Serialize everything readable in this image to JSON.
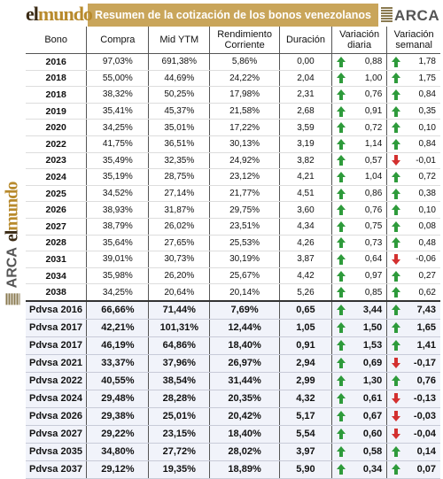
{
  "header": {
    "logo_el": "el",
    "logo_mundo": "mundo",
    "title": "Resumen de la cotización de los bonos venezolanos",
    "arca": "ARCA",
    "arca_sub": "análisis económico"
  },
  "columns": [
    "Bono",
    "Compra",
    "Mid YTM",
    "Rendimiento Corriente",
    "Duración",
    "Variación diaria",
    "Variación semanal"
  ],
  "colors": {
    "band": "#c9a55a",
    "up": "#2e9b3b",
    "down": "#d3302f",
    "pdvsa_bg": "#f1f3fa"
  },
  "rows": [
    {
      "bono": "2016",
      "compra": "97,03%",
      "ytm": "691,38%",
      "rc": "5,86%",
      "dur": "0,00",
      "vd_dir": "up",
      "vd": "0,88",
      "vs_dir": "up",
      "vs": "1,78"
    },
    {
      "bono": "2018",
      "compra": "55,00%",
      "ytm": "44,69%",
      "rc": "24,22%",
      "dur": "2,04",
      "vd_dir": "up",
      "vd": "1,00",
      "vs_dir": "up",
      "vs": "1,75"
    },
    {
      "bono": "2018",
      "compra": "38,32%",
      "ytm": "50,25%",
      "rc": "17,98%",
      "dur": "2,31",
      "vd_dir": "up",
      "vd": "0,76",
      "vs_dir": "up",
      "vs": "0,84"
    },
    {
      "bono": "2019",
      "compra": "35,41%",
      "ytm": "45,37%",
      "rc": "21,58%",
      "dur": "2,68",
      "vd_dir": "up",
      "vd": "0,91",
      "vs_dir": "up",
      "vs": "0,35"
    },
    {
      "bono": "2020",
      "compra": "34,25%",
      "ytm": "35,01%",
      "rc": "17,22%",
      "dur": "3,59",
      "vd_dir": "up",
      "vd": "0,72",
      "vs_dir": "up",
      "vs": "0,10"
    },
    {
      "bono": "2022",
      "compra": "41,75%",
      "ytm": "36,51%",
      "rc": "30,13%",
      "dur": "3,19",
      "vd_dir": "up",
      "vd": "1,14",
      "vs_dir": "up",
      "vs": "0,84"
    },
    {
      "bono": "2023",
      "compra": "35,49%",
      "ytm": "32,35%",
      "rc": "24,92%",
      "dur": "3,82",
      "vd_dir": "up",
      "vd": "0,57",
      "vs_dir": "down",
      "vs": "-0,01"
    },
    {
      "bono": "2024",
      "compra": "35,19%",
      "ytm": "28,75%",
      "rc": "23,12%",
      "dur": "4,21",
      "vd_dir": "up",
      "vd": "1,04",
      "vs_dir": "up",
      "vs": "0,72"
    },
    {
      "bono": "2025",
      "compra": "34,52%",
      "ytm": "27,14%",
      "rc": "21,77%",
      "dur": "4,51",
      "vd_dir": "up",
      "vd": "0,86",
      "vs_dir": "up",
      "vs": "0,38"
    },
    {
      "bono": "2026",
      "compra": "38,93%",
      "ytm": "31,87%",
      "rc": "29,75%",
      "dur": "3,60",
      "vd_dir": "up",
      "vd": "0,76",
      "vs_dir": "up",
      "vs": "0,10"
    },
    {
      "bono": "2027",
      "compra": "38,79%",
      "ytm": "26,02%",
      "rc": "23,51%",
      "dur": "4,34",
      "vd_dir": "up",
      "vd": "0,75",
      "vs_dir": "up",
      "vs": "0,08"
    },
    {
      "bono": "2028",
      "compra": "35,64%",
      "ytm": "27,65%",
      "rc": "25,53%",
      "dur": "4,26",
      "vd_dir": "up",
      "vd": "0,73",
      "vs_dir": "up",
      "vs": "0,48"
    },
    {
      "bono": "2031",
      "compra": "39,01%",
      "ytm": "30,73%",
      "rc": "30,19%",
      "dur": "3,87",
      "vd_dir": "up",
      "vd": "0,64",
      "vs_dir": "down",
      "vs": "-0,06"
    },
    {
      "bono": "2034",
      "compra": "35,98%",
      "ytm": "26,20%",
      "rc": "25,67%",
      "dur": "4,42",
      "vd_dir": "up",
      "vd": "0,97",
      "vs_dir": "up",
      "vs": "0,27"
    },
    {
      "bono": "2038",
      "compra": "34,25%",
      "ytm": "20,64%",
      "rc": "20,14%",
      "dur": "5,26",
      "vd_dir": "up",
      "vd": "0,85",
      "vs_dir": "up",
      "vs": "0,62"
    }
  ],
  "pdvsa_rows": [
    {
      "bono": "Pdvsa 2016",
      "compra": "66,66%",
      "ytm": "71,44%",
      "rc": "7,69%",
      "dur": "0,65",
      "vd_dir": "up",
      "vd": "3,44",
      "vs_dir": "up",
      "vs": "7,43"
    },
    {
      "bono": "Pdvsa 2017",
      "compra": "42,21%",
      "ytm": "101,31%",
      "rc": "12,44%",
      "dur": "1,05",
      "vd_dir": "up",
      "vd": "1,50",
      "vs_dir": "up",
      "vs": "1,65"
    },
    {
      "bono": "Pdvsa 2017",
      "compra": "46,19%",
      "ytm": "64,86%",
      "rc": "18,40%",
      "dur": "0,91",
      "vd_dir": "up",
      "vd": "1,53",
      "vs_dir": "up",
      "vs": "1,41"
    },
    {
      "bono": "Pdvsa 2021",
      "compra": "33,37%",
      "ytm": "37,96%",
      "rc": "26,97%",
      "dur": "2,94",
      "vd_dir": "up",
      "vd": "0,69",
      "vs_dir": "down",
      "vs": "-0,17"
    },
    {
      "bono": "Pdvsa 2022",
      "compra": "40,55%",
      "ytm": "38,54%",
      "rc": "31,44%",
      "dur": "2,99",
      "vd_dir": "up",
      "vd": "1,30",
      "vs_dir": "up",
      "vs": "0,76"
    },
    {
      "bono": "Pdvsa 2024",
      "compra": "29,48%",
      "ytm": "28,28%",
      "rc": "20,35%",
      "dur": "4,32",
      "vd_dir": "up",
      "vd": "0,61",
      "vs_dir": "down",
      "vs": "-0,13"
    },
    {
      "bono": "Pdvsa 2026",
      "compra": "29,38%",
      "ytm": "25,01%",
      "rc": "20,42%",
      "dur": "5,17",
      "vd_dir": "up",
      "vd": "0,67",
      "vs_dir": "down",
      "vs": "-0,03"
    },
    {
      "bono": "Pdvsa 2027",
      "compra": "29,22%",
      "ytm": "23,15%",
      "rc": "18,40%",
      "dur": "5,54",
      "vd_dir": "up",
      "vd": "0,60",
      "vs_dir": "down",
      "vs": "-0,04"
    },
    {
      "bono": "Pdvsa 2035",
      "compra": "34,80%",
      "ytm": "27,72%",
      "rc": "28,02%",
      "dur": "3,97",
      "vd_dir": "up",
      "vd": "0,58",
      "vs_dir": "up",
      "vs": "0,14"
    },
    {
      "bono": "Pdvsa 2037",
      "compra": "29,12%",
      "ytm": "19,35%",
      "rc": "18,89%",
      "dur": "5,90",
      "vd_dir": "up",
      "vd": "0,34",
      "vs_dir": "up",
      "vs": "0,07"
    }
  ]
}
